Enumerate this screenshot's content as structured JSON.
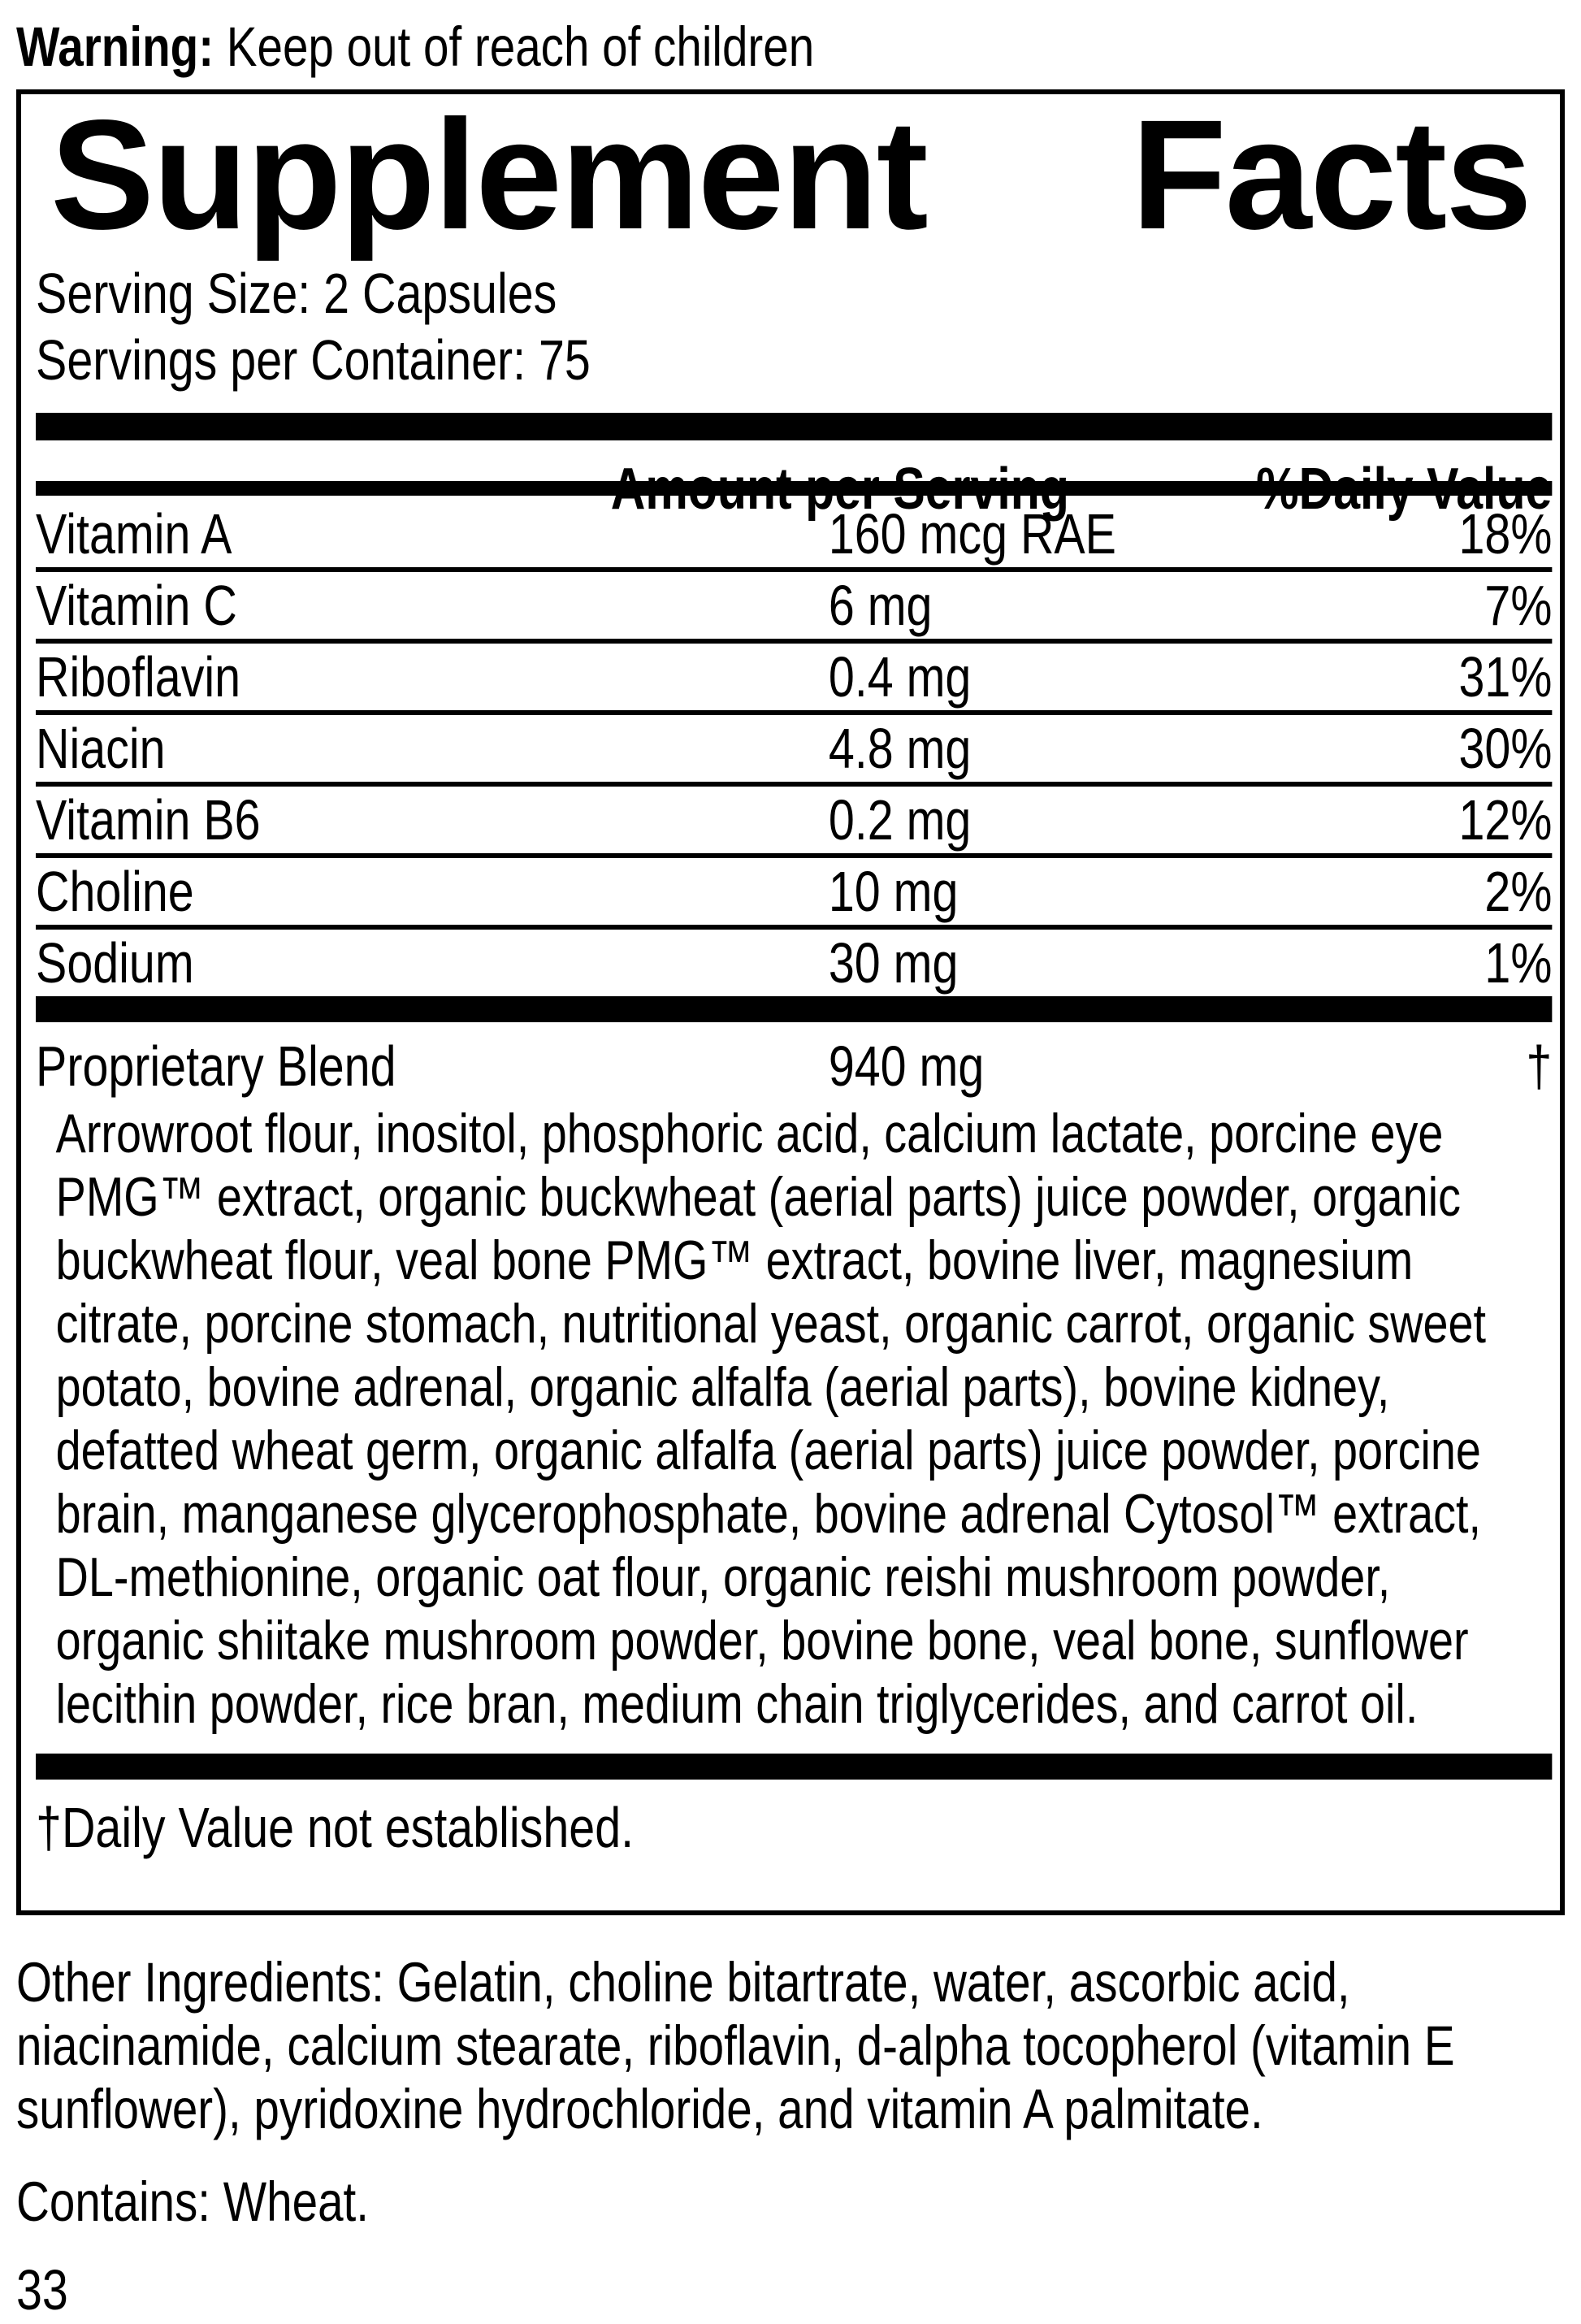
{
  "warning": {
    "label": "Warning:",
    "text": " Keep out of reach of children"
  },
  "panel": {
    "title_left": "Supplement",
    "title_right": "Facts",
    "serving_size": "Serving Size: 2 Capsules",
    "servings_per_container": "Servings per Container: 75",
    "columns": {
      "amount_header": "Amount per Serving",
      "daily_value_header": "%Daily Value"
    },
    "nutrients": [
      {
        "name": "Vitamin A",
        "amount": "160 mcg RAE",
        "dv": "18%"
      },
      {
        "name": "Vitamin C",
        "amount": "6 mg",
        "dv": "7%"
      },
      {
        "name": "Riboflavin",
        "amount": "0.4 mg",
        "dv": "31%"
      },
      {
        "name": "Niacin",
        "amount": "4.8 mg",
        "dv": "30%"
      },
      {
        "name": "Vitamin B6",
        "amount": "0.2 mg",
        "dv": "12%"
      },
      {
        "name": "Choline",
        "amount": "10 mg",
        "dv": "2%"
      },
      {
        "name": "Sodium",
        "amount": "30 mg",
        "dv": "1%"
      }
    ],
    "proprietary_blend": {
      "name": "Proprietary Blend",
      "amount": "940 mg",
      "dv": "†",
      "ingredients": "Arrowroot flour, inositol, phosphoric acid, calcium lactate, porcine eye PMG™ extract, organic buckwheat (aerial parts) juice powder, organic buckwheat flour, veal bone PMG™ extract, bovine liver, magnesium citrate, porcine stomach, nutritional yeast, organic carrot, organic sweet potato, bovine adrenal, organic alfalfa (aerial parts), bovine kidney, defatted wheat germ, organic alfalfa (aerial parts) juice powder, porcine brain, manganese glycerophosphate, bovine adrenal Cytosol™ extract, DL-methionine, organic oat flour, organic reishi mushroom powder, organic shiitake mushroom powder, bovine bone, veal bone, sunflower lecithin powder, rice bran, medium chain triglycerides, and carrot oil."
    },
    "footnote": "†Daily Value not established."
  },
  "other_ingredients": "Other Ingredients: Gelatin, choline bitartrate, water, ascorbic acid, niacinamide, calcium stearate, riboflavin, d-alpha tocopherol (vitamin E sunflower), pyridoxine hydrochloride, and vitamin A palmitate.",
  "contains": "Contains: Wheat.",
  "page_number": "33",
  "colors": {
    "ink": "#000000",
    "background": "#ffffff"
  }
}
